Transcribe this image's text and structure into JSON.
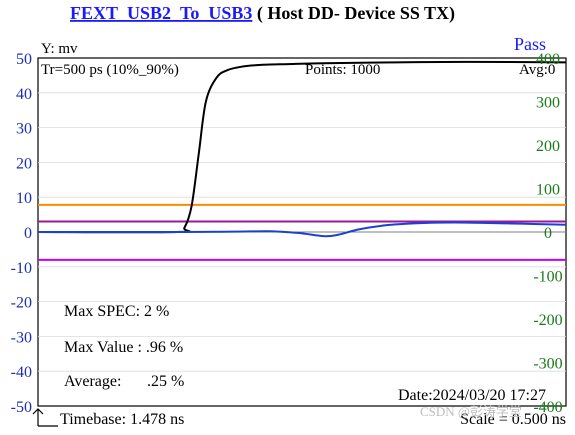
{
  "header": {
    "title_link": "FEXT_USB2_To_USB3",
    "title_rest": " ( Host  DD- Device  SS  TX)",
    "status": "Pass"
  },
  "panel": {
    "y_unit": "Y: mv",
    "tr": "Tr=500  ps (10%_90%)",
    "points": "Points: 1000",
    "avg": "Avg:0",
    "max_spec": "Max SPEC: 2 %",
    "max_value": "Max Value : .96 %",
    "average_label": "Average:",
    "average_value": ".25 %",
    "date": "Date:2024/03/20 17:27",
    "timebase": "Timebase: 1.478  ns",
    "scale": "Scale = 0.500 ns",
    "watermark": "CSDN @彭涛学堂"
  },
  "chart_data": {
    "type": "line",
    "title": "FEXT_USB2_To_USB3 ( Host  DD- Device  SS  TX)",
    "ylabel": "Y: mv",
    "y_left": {
      "ylim": [
        -50,
        50
      ],
      "ticks": [
        "50",
        "40",
        "30",
        "20",
        "10",
        "0",
        "-10",
        "-20",
        "-30",
        "-40",
        "-50"
      ]
    },
    "y_right": {
      "ylim": [
        -400,
        400
      ],
      "ticks": [
        "400",
        "300",
        "200",
        "100",
        "0",
        "-100",
        "-200",
        "-300",
        "-400"
      ]
    },
    "x_range_ns": [
      0,
      14.78
    ],
    "grid": true,
    "reference_lines": [
      {
        "axis": "left",
        "value": 7.8,
        "color": "#ff8c00"
      },
      {
        "axis": "left",
        "value": -8.0,
        "color": "#c000ff"
      },
      {
        "axis": "left",
        "value": 3.0,
        "color": "#9a1a9a"
      }
    ],
    "series": [
      {
        "axis": "right",
        "color": "#000000",
        "x": [
          0,
          3.9,
          4.1,
          4.3,
          4.5,
          4.7,
          5.0,
          5.3,
          5.7,
          6.2,
          7.0,
          8.0,
          10.0,
          12.0,
          14.78
        ],
        "y": [
          0,
          0,
          10,
          60,
          180,
          300,
          355,
          372,
          380,
          384,
          386,
          388,
          390,
          391,
          390
        ]
      },
      {
        "axis": "left",
        "color": "#1f3fd0",
        "x": [
          0,
          4.0,
          5.5,
          6.5,
          7.3,
          8.0,
          8.4,
          9.0,
          9.8,
          10.8,
          12.0,
          13.5,
          14.78
        ],
        "y": [
          0,
          0,
          0.1,
          0.2,
          -0.3,
          -1.2,
          -0.8,
          0.8,
          2.0,
          2.6,
          2.7,
          2.4,
          2.1
        ]
      }
    ]
  }
}
